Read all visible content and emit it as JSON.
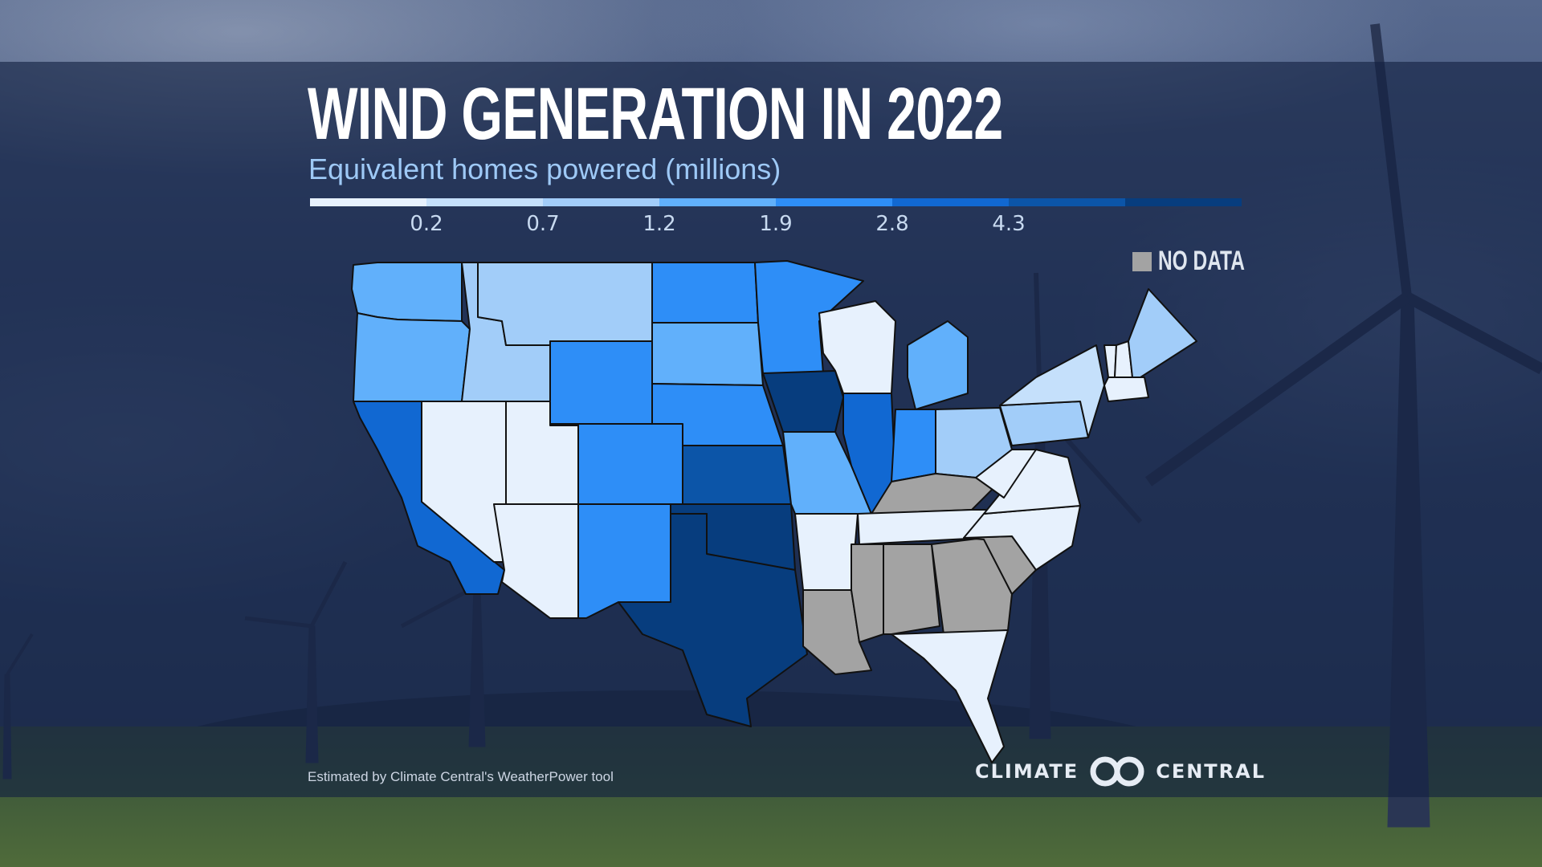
{
  "title": "WIND GENERATION IN 2022",
  "subtitle": "Equivalent homes powered (millions)",
  "legend": {
    "colors": [
      "#e7f1fd",
      "#c5e0fb",
      "#a2cdf9",
      "#61b0fb",
      "#2e8ef7",
      "#1168d2",
      "#0c55a8",
      "#073d7e"
    ],
    "ticks": [
      "0.2",
      "0.7",
      "1.2",
      "1.9",
      "2.8",
      "4.3"
    ],
    "no_data_label": "NO DATA",
    "no_data_color": "#a3a3a3"
  },
  "map": {
    "border_color": "#111111",
    "states": [
      {
        "name": "WA",
        "class": 3
      },
      {
        "name": "OR",
        "class": 3
      },
      {
        "name": "CA",
        "class": 5
      },
      {
        "name": "ID",
        "class": 2
      },
      {
        "name": "NV",
        "class": 0
      },
      {
        "name": "UT",
        "class": 0
      },
      {
        "name": "AZ",
        "class": 0
      },
      {
        "name": "MT",
        "class": 2
      },
      {
        "name": "WY",
        "class": 4
      },
      {
        "name": "CO",
        "class": 4
      },
      {
        "name": "NM",
        "class": 4
      },
      {
        "name": "ND",
        "class": 4
      },
      {
        "name": "SD",
        "class": 3
      },
      {
        "name": "NE",
        "class": 4
      },
      {
        "name": "KS",
        "class": 6
      },
      {
        "name": "OK",
        "class": 7
      },
      {
        "name": "TX",
        "class": 7
      },
      {
        "name": "MN",
        "class": 4
      },
      {
        "name": "IA",
        "class": 7
      },
      {
        "name": "MO",
        "class": 3
      },
      {
        "name": "AR",
        "class": 0
      },
      {
        "name": "LA",
        "class": "nodata"
      },
      {
        "name": "WI",
        "class": 0
      },
      {
        "name": "IL",
        "class": 5
      },
      {
        "name": "MI",
        "class": 3
      },
      {
        "name": "IN",
        "class": 4
      },
      {
        "name": "OH",
        "class": 2
      },
      {
        "name": "KY",
        "class": "nodata"
      },
      {
        "name": "TN",
        "class": 0
      },
      {
        "name": "MS",
        "class": "nodata"
      },
      {
        "name": "AL",
        "class": "nodata"
      },
      {
        "name": "GA",
        "class": "nodata"
      },
      {
        "name": "FL",
        "class": 0
      },
      {
        "name": "SC",
        "class": "nodata"
      },
      {
        "name": "NC",
        "class": 0
      },
      {
        "name": "VA",
        "class": 0
      },
      {
        "name": "WV",
        "class": 0
      },
      {
        "name": "PA",
        "class": 2
      },
      {
        "name": "NY",
        "class": 1
      },
      {
        "name": "VT",
        "class": 0
      },
      {
        "name": "NH",
        "class": 0
      },
      {
        "name": "ME",
        "class": 2
      },
      {
        "name": "MA",
        "class": 0
      }
    ]
  },
  "source": "Estimated by Climate Central's WeatherPower tool",
  "brand": {
    "left": "CLIMATE",
    "right": "CENTRAL"
  }
}
